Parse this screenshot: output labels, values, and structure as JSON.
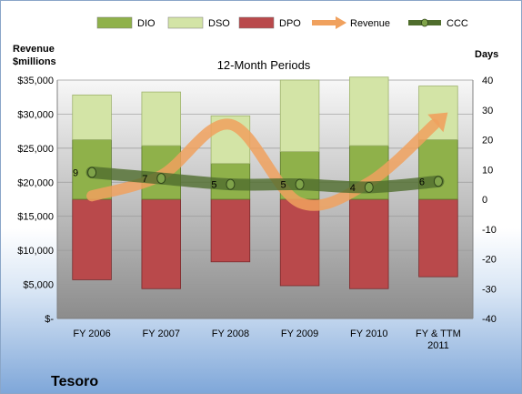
{
  "chart_data": {
    "type": "bar",
    "title": "12-Month Periods",
    "company": "Tesoro",
    "ylabel_left_line1": "Revenue",
    "ylabel_left_line2": "$millions",
    "ylabel_right": "Days",
    "categories": [
      [
        "FY 2006"
      ],
      [
        "FY 2007"
      ],
      [
        "FY 2008"
      ],
      [
        "FY 2009"
      ],
      [
        "FY 2010"
      ],
      [
        "FY & TTM",
        "2011"
      ]
    ],
    "ylim_left": [
      0,
      35000
    ],
    "yticks_left": [
      {
        "value": 0,
        "label": "$-"
      },
      {
        "value": 5000,
        "label": "$5,000"
      },
      {
        "value": 10000,
        "label": "$10,000"
      },
      {
        "value": 15000,
        "label": "$15,000"
      },
      {
        "value": 20000,
        "label": "$20,000"
      },
      {
        "value": 25000,
        "label": "$25,000"
      },
      {
        "value": 30000,
        "label": "$30,000"
      },
      {
        "value": 35000,
        "label": "$35,000"
      }
    ],
    "ylim_right": [
      -40,
      40
    ],
    "yticks_right": [
      -40,
      -30,
      -20,
      -10,
      0,
      10,
      20,
      30,
      40
    ],
    "legend_placement": "top",
    "series": [
      {
        "name": "DIO",
        "kind": "bar",
        "color": "#8fb14a",
        "values": [
          20,
          18,
          12,
          16,
          18,
          20
        ]
      },
      {
        "name": "DSO",
        "kind": "bar",
        "color": "#d3e4a6",
        "values": [
          15,
          18,
          16,
          24,
          23,
          18
        ]
      },
      {
        "name": "DPO",
        "kind": "bar",
        "color": "#b9494b",
        "values": [
          -27,
          -30,
          -21,
          -29,
          -30,
          -26
        ]
      },
      {
        "name": "Revenue",
        "kind": "line",
        "color": "#f0a15e",
        "values": [
          18000,
          21000,
          28500,
          17000,
          20000,
          29000
        ]
      },
      {
        "name": "CCC",
        "kind": "line",
        "color": "#4f6d2d",
        "values": [
          9,
          7,
          5,
          5,
          4,
          6
        ]
      }
    ],
    "ccc_labels": [
      "9",
      "7",
      "5",
      "5",
      "4",
      "6"
    ]
  }
}
